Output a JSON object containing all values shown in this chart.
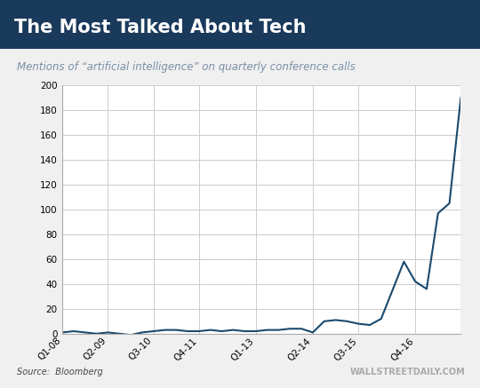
{
  "title": "The Most Talked About Tech",
  "subtitle": "Mentions of “artificial intelligence” on quarterly conference calls",
  "title_bg_color": "#1a3a5c",
  "title_text_color": "#ffffff",
  "subtitle_text_color": "#7a8fa6",
  "line_color": "#1a4a6e",
  "chart_bg_color": "#ffffff",
  "outer_bg_color": "#f0f0f0",
  "grid_color": "#cccccc",
  "source_text": "Source:  Bloomberg",
  "watermark_text": "WALLSTREETDAILY.COM",
  "x_labels": [
    "Q1-08",
    "Q2-09",
    "Q3-10",
    "Q4-11",
    "Q1-13",
    "Q2-14",
    "Q3-15",
    "Q4-16"
  ],
  "x_label_indices": [
    0,
    4,
    8,
    12,
    17,
    22,
    26,
    31
  ],
  "ylim": [
    0,
    200
  ],
  "yticks": [
    0,
    20,
    40,
    60,
    80,
    100,
    120,
    140,
    160,
    180,
    200
  ],
  "data": [
    1,
    2,
    1,
    0,
    1,
    0,
    -1,
    1,
    2,
    3,
    3,
    2,
    2,
    3,
    2,
    3,
    2,
    2,
    3,
    3,
    4,
    4,
    1,
    10,
    11,
    10,
    8,
    7,
    12,
    35,
    58,
    42,
    36,
    97,
    105,
    190
  ]
}
